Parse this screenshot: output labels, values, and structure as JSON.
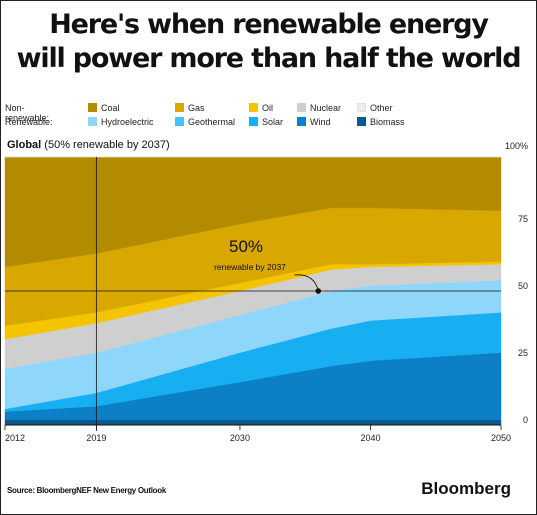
{
  "header": {
    "title_line1": "Here's when renewable energy",
    "title_line2": "will power more than half the world"
  },
  "legend": {
    "nonrenewable_label": "Non-renewable:",
    "renewable_label": "Renewable:",
    "nonrenewable": [
      {
        "name": "Coal",
        "color": "#b38b00"
      },
      {
        "name": "Gas",
        "color": "#d9a800"
      },
      {
        "name": "Oil",
        "color": "#f5c400"
      },
      {
        "name": "Nuclear",
        "color": "#cfcfcf"
      },
      {
        "name": "Other",
        "color": "#eeeeee"
      }
    ],
    "renewable": [
      {
        "name": "Hydroelectric",
        "color": "#8fd6fb"
      },
      {
        "name": "Geothermal",
        "color": "#45c3f5"
      },
      {
        "name": "Solar",
        "color": "#17aef2"
      },
      {
        "name": "Wind",
        "color": "#0d7fc6"
      },
      {
        "name": "Biomass",
        "color": "#0a5a8c"
      }
    ]
  },
  "subtitle": {
    "bold": "Global",
    "rest": " (50% renewable by 2037)"
  },
  "chart_data": {
    "type": "area",
    "stacked": true,
    "x": [
      2012,
      2019,
      2030,
      2037,
      2040,
      2050
    ],
    "xticks": [
      "2012",
      "2019",
      "2030",
      "2040",
      "2050"
    ],
    "xlim": [
      2012,
      2050
    ],
    "ylim": [
      0,
      100
    ],
    "yticks": [
      "0",
      "25",
      "50",
      "75",
      "100%"
    ],
    "reference_lines": {
      "x": 2019,
      "y": 50
    },
    "series": [
      {
        "name": "Biomass",
        "color": "#0a5a8c",
        "values": [
          2,
          2,
          2,
          2,
          2,
          2
        ]
      },
      {
        "name": "Wind",
        "color": "#0d7fc6",
        "values": [
          3,
          5,
          14,
          20,
          22,
          25
        ]
      },
      {
        "name": "Solar",
        "color": "#17aef2",
        "values": [
          1,
          5,
          11,
          14,
          15,
          15
        ]
      },
      {
        "name": "Geothermal",
        "color": "#45c3f5",
        "values": [
          0,
          0,
          0,
          0,
          0,
          0
        ]
      },
      {
        "name": "Hydroelectric",
        "color": "#8fd6fb",
        "values": [
          15,
          15,
          14,
          14,
          13,
          12
        ]
      },
      {
        "name": "Nuclear",
        "color": "#cfcfcf",
        "values": [
          11,
          11,
          9,
          8,
          7,
          6
        ]
      },
      {
        "name": "Oil",
        "color": "#f5c400",
        "values": [
          5,
          4,
          3,
          2,
          1,
          1
        ]
      },
      {
        "name": "Gas",
        "color": "#d9a800",
        "values": [
          22,
          22,
          22,
          21,
          21,
          19
        ]
      },
      {
        "name": "Coal",
        "color": "#b38b00",
        "values": [
          41,
          36,
          25,
          19,
          19,
          20
        ]
      },
      {
        "name": "Other",
        "color": "#eeeeee",
        "values": [
          0,
          0,
          0,
          0,
          0,
          0
        ]
      }
    ],
    "annotation": {
      "x": 2036,
      "y": 50,
      "big_text": "50%",
      "small_text": "renewable by 2037"
    }
  },
  "footer": {
    "source": "Source: BloombergNEF New Energy Outlook",
    "brand": "Bloomberg"
  }
}
